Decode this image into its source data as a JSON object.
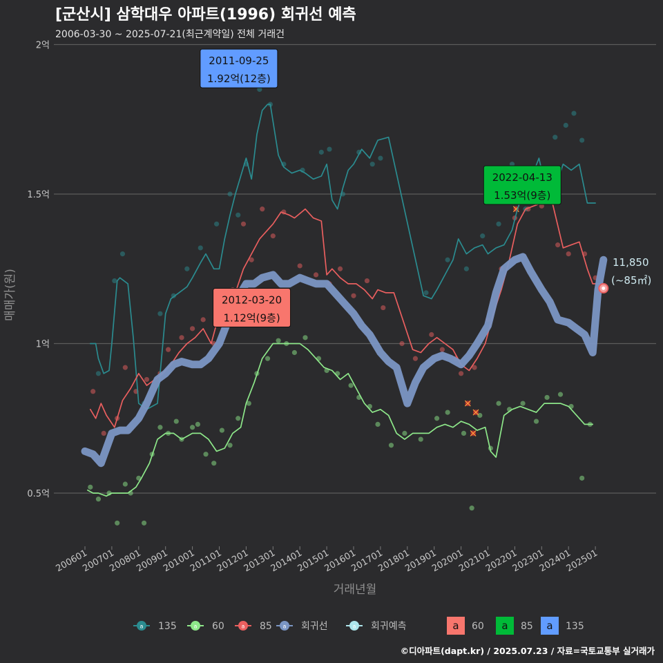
{
  "title": "[군산시] 삼학대우 아파트(1996) 회귀선 예측",
  "subtitle": "2006-03-30 ~ 2025-07-21(최근계약일) 전체 거래건",
  "xlabel": "거래년월",
  "ylabel": "매매가(원)",
  "credit": "©디아파트(dapt.kr) / 2025.07.23 / 자료=국토교통부 실거래가",
  "end_label": {
    "value": "11,850",
    "area": "(~85㎡)"
  },
  "legend": {
    "lines": [
      {
        "label": "135",
        "color": "#2b8c90"
      },
      {
        "label": "60",
        "color": "#8ee88a"
      },
      {
        "label": "85",
        "color": "#ea5f5f"
      },
      {
        "label": "회귀선",
        "color": "#7b96c4"
      },
      {
        "label": "회귀예측",
        "color": "#aee6ec"
      }
    ],
    "boxes": [
      {
        "glyph": "a",
        "label": "60",
        "color": "#f8766d"
      },
      {
        "glyph": "a",
        "label": "85",
        "color": "#00ba38"
      },
      {
        "glyph": "a",
        "label": "135",
        "color": "#619cff"
      }
    ]
  },
  "chart_data": {
    "type": "line",
    "title": "[군산시] 삼학대우 아파트(1996) 회귀선 예측",
    "xlabel": "거래년월",
    "ylabel": "매매가(원)",
    "x_range": [
      2006.0,
      2025.6
    ],
    "ylim": [
      0.3,
      2.0
    ],
    "y_ticks": [
      0.5,
      1.0,
      1.5,
      2.0
    ],
    "y_tick_labels": [
      "0.5억",
      "1억",
      "1.5억",
      "2억"
    ],
    "x_ticks": [
      2006,
      2007,
      2008,
      2009,
      2010,
      2011,
      2012,
      2013,
      2014,
      2015,
      2016,
      2017,
      2018,
      2019,
      2020,
      2021,
      2022,
      2023,
      2024,
      2025
    ],
    "x_tick_labels": [
      "200601",
      "200701",
      "200801",
      "200901",
      "201001",
      "201101",
      "201201",
      "201301",
      "201401",
      "201501",
      "201601",
      "201701",
      "201801",
      "201901",
      "202001",
      "202101",
      "202201",
      "202301",
      "202401",
      "202501"
    ],
    "units": "억원",
    "series": [
      {
        "name": "135",
        "color": "#2b8c90",
        "x": [
          2006.2,
          2006.4,
          2006.5,
          2006.7,
          2006.9,
          2007.0,
          2007.2,
          2007.3,
          2007.6,
          2007.8,
          2008.0,
          2008.3,
          2008.5,
          2008.7,
          2009.0,
          2009.2,
          2009.5,
          2009.8,
          2010.0,
          2010.3,
          2010.5,
          2010.8,
          2011.0,
          2011.2,
          2011.4,
          2011.6,
          2011.8,
          2012.0,
          2012.2,
          2012.4,
          2012.6,
          2012.8,
          2012.9,
          2013.2,
          2013.4,
          2013.7,
          2014.0,
          2014.2,
          2014.5,
          2014.8,
          2015.0,
          2015.2,
          2015.4,
          2015.6,
          2015.8,
          2016.0,
          2016.3,
          2016.6,
          2016.9,
          2017.3,
          2018.6,
          2018.9,
          2019.1,
          2019.4,
          2019.7,
          2019.9,
          2020.2,
          2020.5,
          2020.8,
          2021.0,
          2021.3,
          2021.6,
          2021.9,
          2022.1,
          2022.3,
          2022.6,
          2022.9,
          2023.2,
          2023.5,
          2023.8,
          2024.1,
          2024.4,
          2024.7,
          2025.0
        ],
        "y": [
          1.0,
          1.0,
          0.95,
          0.9,
          0.91,
          1.0,
          1.21,
          1.22,
          1.2,
          1.02,
          0.8,
          0.78,
          0.79,
          0.8,
          1.1,
          1.15,
          1.17,
          1.19,
          1.22,
          1.27,
          1.3,
          1.25,
          1.25,
          1.35,
          1.43,
          1.5,
          1.56,
          1.62,
          1.55,
          1.7,
          1.78,
          1.8,
          1.8,
          1.63,
          1.59,
          1.57,
          1.58,
          1.57,
          1.55,
          1.56,
          1.6,
          1.48,
          1.45,
          1.52,
          1.58,
          1.6,
          1.65,
          1.62,
          1.68,
          1.69,
          1.16,
          1.15,
          1.18,
          1.23,
          1.28,
          1.35,
          1.3,
          1.32,
          1.33,
          1.3,
          1.32,
          1.33,
          1.38,
          1.45,
          1.5,
          1.55,
          1.62,
          1.5,
          1.52,
          1.6,
          1.58,
          1.6,
          1.47,
          1.47
        ]
      },
      {
        "name": "60",
        "color": "#8ee88a",
        "x": [
          2006.1,
          2006.3,
          2006.5,
          2006.8,
          2007.0,
          2007.3,
          2007.6,
          2007.9,
          2008.1,
          2008.4,
          2008.7,
          2009.0,
          2009.3,
          2009.6,
          2010.0,
          2010.3,
          2010.6,
          2010.9,
          2011.2,
          2011.5,
          2011.8,
          2012.0,
          2012.3,
          2012.6,
          2013.0,
          2013.3,
          2013.6,
          2014.0,
          2014.3,
          2014.6,
          2014.9,
          2015.2,
          2015.5,
          2015.8,
          2016.1,
          2016.4,
          2016.7,
          2017.0,
          2017.3,
          2017.6,
          2017.9,
          2018.2,
          2018.5,
          2018.8,
          2019.1,
          2019.4,
          2019.7,
          2020.0,
          2020.3,
          2020.6,
          2020.9,
          2021.1,
          2021.3,
          2021.6,
          2021.9,
          2022.2,
          2022.5,
          2022.8,
          2023.1,
          2023.4,
          2023.7,
          2024.0,
          2024.3,
          2024.6,
          2024.9
        ],
        "y": [
          0.51,
          0.5,
          0.5,
          0.49,
          0.5,
          0.5,
          0.5,
          0.52,
          0.55,
          0.6,
          0.68,
          0.7,
          0.7,
          0.68,
          0.7,
          0.7,
          0.68,
          0.64,
          0.65,
          0.7,
          0.72,
          0.8,
          0.87,
          0.95,
          1.0,
          1.0,
          1.0,
          1.0,
          0.98,
          0.95,
          0.92,
          0.91,
          0.88,
          0.9,
          0.85,
          0.8,
          0.77,
          0.78,
          0.76,
          0.7,
          0.68,
          0.7,
          0.7,
          0.7,
          0.72,
          0.73,
          0.72,
          0.74,
          0.73,
          0.71,
          0.72,
          0.64,
          0.62,
          0.76,
          0.78,
          0.79,
          0.78,
          0.77,
          0.8,
          0.8,
          0.8,
          0.79,
          0.76,
          0.73,
          0.73
        ]
      },
      {
        "name": "85",
        "color": "#ea5f5f",
        "x": [
          2006.2,
          2006.4,
          2006.6,
          2006.8,
          2007.1,
          2007.4,
          2007.7,
          2008.0,
          2008.3,
          2008.6,
          2008.9,
          2009.2,
          2009.5,
          2009.8,
          2010.1,
          2010.4,
          2010.7,
          2011.0,
          2011.3,
          2011.6,
          2011.9,
          2012.2,
          2012.5,
          2012.8,
          2013.0,
          2013.3,
          2013.6,
          2013.8,
          2014.2,
          2014.5,
          2014.8,
          2015.0,
          2015.2,
          2015.5,
          2015.8,
          2016.1,
          2016.4,
          2016.7,
          2016.9,
          2017.2,
          2017.5,
          2018.2,
          2018.5,
          2018.8,
          2019.1,
          2019.4,
          2019.7,
          2020.0,
          2020.3,
          2020.6,
          2020.9,
          2021.2,
          2021.5,
          2021.8,
          2022.1,
          2022.4,
          2022.7,
          2023.0,
          2023.4,
          2023.8,
          2024.1,
          2024.4,
          2024.7,
          2024.9,
          2025.2
        ],
        "y": [
          0.78,
          0.75,
          0.8,
          0.76,
          0.72,
          0.81,
          0.85,
          0.9,
          0.86,
          0.88,
          0.9,
          0.93,
          0.97,
          1.0,
          1.02,
          1.05,
          1.0,
          1.1,
          1.13,
          1.17,
          1.25,
          1.3,
          1.35,
          1.38,
          1.4,
          1.44,
          1.43,
          1.42,
          1.45,
          1.42,
          1.41,
          1.23,
          1.25,
          1.22,
          1.2,
          1.2,
          1.18,
          1.15,
          1.18,
          1.17,
          1.17,
          0.98,
          0.97,
          1.0,
          1.02,
          1.0,
          0.98,
          0.93,
          0.91,
          0.95,
          1.0,
          1.1,
          1.18,
          1.28,
          1.4,
          1.45,
          1.46,
          1.47,
          1.47,
          1.32,
          1.33,
          1.34,
          1.25,
          1.2,
          1.2
        ]
      },
      {
        "name": "회귀선",
        "color": "#7b96c4",
        "x": [
          2006.0,
          2006.3,
          2006.6,
          2007.0,
          2007.3,
          2007.6,
          2008.0,
          2008.3,
          2008.7,
          2009.0,
          2009.3,
          2009.6,
          2010.0,
          2010.3,
          2010.6,
          2011.0,
          2011.3,
          2011.6,
          2012.0,
          2012.3,
          2012.6,
          2013.0,
          2013.3,
          2013.6,
          2014.0,
          2014.3,
          2014.6,
          2015.0,
          2015.3,
          2015.6,
          2016.0,
          2016.3,
          2016.6,
          2017.0,
          2017.3,
          2017.6,
          2018.0,
          2018.3,
          2018.6,
          2019.0,
          2019.3,
          2019.6,
          2020.0,
          2020.3,
          2020.6,
          2021.0,
          2021.3,
          2021.6,
          2022.0,
          2022.3,
          2022.6,
          2023.0,
          2023.3,
          2023.6,
          2024.0,
          2024.3,
          2024.6,
          2024.9,
          2025.1,
          2025.3
        ],
        "y": [
          0.64,
          0.63,
          0.6,
          0.7,
          0.71,
          0.71,
          0.75,
          0.8,
          0.88,
          0.9,
          0.93,
          0.94,
          0.93,
          0.93,
          0.95,
          1.0,
          1.07,
          1.14,
          1.2,
          1.2,
          1.22,
          1.23,
          1.2,
          1.2,
          1.22,
          1.21,
          1.2,
          1.2,
          1.17,
          1.14,
          1.1,
          1.06,
          1.03,
          0.97,
          0.94,
          0.92,
          0.8,
          0.87,
          0.92,
          0.95,
          0.96,
          0.95,
          0.93,
          0.96,
          1.0,
          1.06,
          1.17,
          1.25,
          1.28,
          1.29,
          1.24,
          1.18,
          1.14,
          1.08,
          1.07,
          1.05,
          1.03,
          0.97,
          1.18,
          1.28
        ]
      },
      {
        "name": "회귀예측",
        "color": "#aee6ec",
        "x": [
          2025.3
        ],
        "y": [
          1.185
        ]
      }
    ],
    "scatter": {
      "135": {
        "color": "#2b8c90",
        "x": [
          2006.5,
          2007.1,
          2007.4,
          2008.2,
          2008.8,
          2009.3,
          2009.8,
          2010.3,
          2010.9,
          2011.4,
          2011.7,
          2012.0,
          2012.5,
          2012.9,
          2013.4,
          2014.1,
          2014.8,
          2015.1,
          2015.6,
          2016.2,
          2016.7,
          2017.0,
          2018.7,
          2019.5,
          2020.2,
          2020.8,
          2021.4,
          2021.9,
          2022.4,
          2022.9,
          2023.5,
          2023.9,
          2024.2,
          2024.5
        ],
        "y": [
          0.9,
          1.21,
          1.3,
          0.8,
          1.1,
          1.16,
          1.25,
          1.32,
          1.4,
          1.5,
          1.43,
          1.6,
          1.85,
          1.8,
          1.6,
          1.58,
          1.64,
          1.65,
          1.5,
          1.64,
          1.6,
          1.62,
          1.17,
          1.28,
          1.25,
          1.36,
          1.4,
          1.6,
          1.45,
          1.5,
          1.69,
          1.73,
          1.77,
          1.68
        ]
      },
      "60": {
        "color": "#8ee88a",
        "x": [
          2006.2,
          2006.5,
          2006.9,
          2007.2,
          2007.5,
          2007.7,
          2008.0,
          2008.2,
          2008.5,
          2008.8,
          2009.1,
          2009.4,
          2009.6,
          2010.0,
          2010.2,
          2010.5,
          2010.8,
          2011.1,
          2011.4,
          2011.7,
          2012.1,
          2012.4,
          2012.8,
          2013.2,
          2013.5,
          2013.8,
          2014.2,
          2014.7,
          2015.0,
          2015.4,
          2015.9,
          2016.2,
          2016.6,
          2016.9,
          2017.4,
          2017.9,
          2018.5,
          2019.1,
          2019.5,
          2020.1,
          2020.4,
          2020.7,
          2021.1,
          2021.4,
          2021.8,
          2022.3,
          2022.8,
          2023.2,
          2023.7,
          2024.1,
          2024.5,
          2024.8
        ],
        "y": [
          0.52,
          0.48,
          0.5,
          0.4,
          0.53,
          0.5,
          0.55,
          0.4,
          0.63,
          0.72,
          0.7,
          0.74,
          0.68,
          0.72,
          0.73,
          0.63,
          0.6,
          0.71,
          0.66,
          0.75,
          0.8,
          0.9,
          0.95,
          1.01,
          1.0,
          0.97,
          1.02,
          0.95,
          0.91,
          0.9,
          0.86,
          0.82,
          0.79,
          0.73,
          0.66,
          0.7,
          0.68,
          0.75,
          0.77,
          0.7,
          0.45,
          0.76,
          0.65,
          0.8,
          0.78,
          0.8,
          0.74,
          0.82,
          0.83,
          0.79,
          0.55,
          0.73
        ]
      },
      "85": {
        "color": "#ea5f5f",
        "x": [
          2006.3,
          2006.7,
          2007.2,
          2007.5,
          2007.9,
          2008.3,
          2008.8,
          2009.1,
          2009.6,
          2010.0,
          2010.4,
          2010.8,
          2011.1,
          2011.5,
          2011.9,
          2012.2,
          2012.6,
          2013.0,
          2013.4,
          2014.0,
          2014.6,
          2015.1,
          2015.5,
          2016.0,
          2016.5,
          2017.1,
          2017.8,
          2018.3,
          2018.9,
          2019.3,
          2019.8,
          2020.0,
          2020.5,
          2021.0,
          2021.5,
          2022.0,
          2022.5,
          2023.0,
          2023.6,
          2024.0,
          2024.6,
          2025.0
        ],
        "y": [
          0.84,
          0.7,
          0.75,
          0.92,
          0.84,
          0.88,
          0.9,
          0.98,
          1.02,
          1.05,
          1.08,
          1.0,
          1.12,
          1.18,
          1.4,
          1.28,
          1.45,
          1.36,
          1.44,
          1.26,
          1.23,
          1.2,
          1.25,
          1.16,
          1.21,
          1.12,
          1.0,
          0.95,
          1.03,
          0.98,
          0.95,
          0.9,
          0.92,
          1.08,
          1.25,
          1.42,
          1.45,
          1.46,
          1.33,
          1.3,
          1.3,
          1.22
        ]
      },
      "cancelled": {
        "color": "#e03030",
        "x": [
          2020.25,
          2020.45,
          2020.55,
          2022.05
        ],
        "y": [
          0.8,
          0.7,
          0.77,
          1.45
        ]
      }
    },
    "annotations": [
      {
        "series": "60",
        "date": "2012-03-20",
        "price": "1.12억(9층)",
        "x": 2012.21,
        "y": 1.12,
        "color": "#f8766d"
      },
      {
        "series": "85",
        "date": "2022-04-13",
        "price": "1.53억(9층)",
        "x": 2022.28,
        "y": 1.53,
        "color": "#00ba38"
      },
      {
        "series": "135",
        "date": "2011-09-25",
        "price": "1.92억(12층)",
        "x": 2011.73,
        "y": 1.92,
        "color": "#619cff"
      }
    ],
    "end_point": {
      "x": 2025.3,
      "y": 1.185
    }
  }
}
